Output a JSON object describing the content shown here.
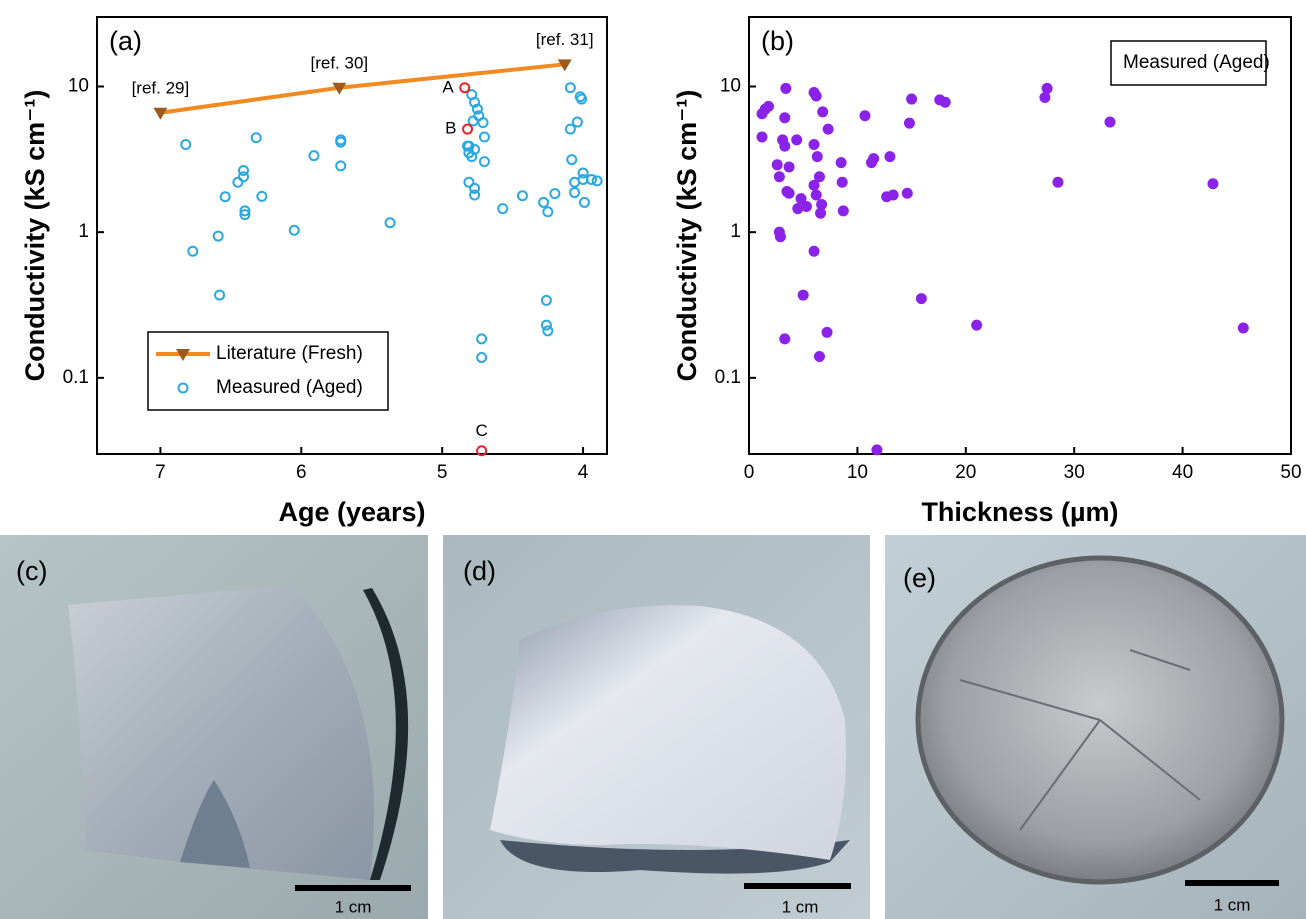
{
  "chart_data": [
    {
      "type": "scatter",
      "panel_label": "(a)",
      "xlabel": "Age (years)",
      "ylabel": "Conductivity (kS cm⁻¹)",
      "xlim": [
        7.45,
        3.83
      ],
      "xticks": [
        7,
        6,
        5,
        4
      ],
      "ylim": [
        0.03,
        30
      ],
      "ylog": true,
      "yticks": [
        0.1,
        1,
        10
      ],
      "grid": false,
      "legend": "lower left",
      "series": [
        {
          "name": "Literature (Fresh)",
          "style": "line",
          "color": "#f28a22",
          "marker_color": "#9a5b1c",
          "marker": "triangle-down",
          "x": [
            7.0,
            5.73,
            4.13
          ],
          "values": [
            6.6,
            9.8,
            14.2
          ]
        },
        {
          "name": "Measured (Aged)",
          "style": "points",
          "color": "#2aa8e0",
          "marker": "open-circle",
          "x": [
            6.82,
            6.77,
            6.59,
            6.58,
            6.54,
            6.45,
            6.41,
            6.41,
            6.4,
            6.4,
            6.32,
            6.28,
            6.05,
            5.91,
            5.72,
            5.72,
            5.72,
            5.37,
            4.81,
            4.81,
            4.79,
            4.77,
            4.75,
            4.74,
            4.78,
            4.71,
            4.7,
            4.82,
            4.77,
            4.81,
            4.79,
            4.7,
            4.77,
            4.77,
            4.72,
            4.72,
            4.57,
            4.43,
            4.28,
            4.25,
            4.26,
            4.26,
            4.25,
            4.2,
            4.09,
            4.02,
            4.01,
            4.09,
            4.04,
            4.08,
            4.06,
            4.06,
            4.0,
            4.0,
            3.94,
            3.99,
            3.9
          ],
          "values": [
            4.0,
            0.74,
            0.94,
            0.37,
            1.75,
            2.2,
            2.4,
            2.65,
            1.4,
            1.32,
            4.45,
            1.76,
            1.03,
            3.35,
            4.3,
            4.15,
            2.85,
            1.16,
            3.9,
            2.2,
            8.8,
            7.8,
            7.0,
            6.3,
            5.8,
            5.65,
            4.5,
            3.9,
            3.7,
            3.5,
            3.3,
            3.05,
            2.0,
            1.8,
            0.185,
            0.138,
            1.45,
            1.78,
            1.6,
            1.38,
            0.34,
            0.23,
            0.21,
            1.84,
            9.8,
            8.5,
            8.2,
            5.1,
            5.7,
            3.15,
            2.2,
            1.87,
            2.55,
            2.3,
            2.3,
            1.6,
            2.25
          ]
        }
      ],
      "annotations": [
        {
          "text": "[ref. 29]",
          "x": 7.0,
          "y": 6.6
        },
        {
          "text": "[ref. 30]",
          "x": 5.73,
          "y": 9.8
        },
        {
          "text": "[ref. 31]",
          "x": 4.13,
          "y": 14.2
        }
      ],
      "highlights": {
        "color": "#e8232a",
        "points": [
          {
            "label": "A",
            "x": 4.84,
            "y": 9.8
          },
          {
            "label": "B",
            "x": 4.82,
            "y": 5.1
          },
          {
            "label": "C",
            "x": 4.72,
            "y": 0.0316
          }
        ]
      }
    },
    {
      "type": "scatter",
      "panel_label": "(b)",
      "xlabel": "Thickness (µm)",
      "ylabel": "Conductivity (kS cm⁻¹)",
      "xlim": [
        0,
        50
      ],
      "xticks": [
        0,
        10,
        20,
        30,
        40,
        50
      ],
      "ylim": [
        0.03,
        30
      ],
      "ylog": true,
      "yticks": [
        0.1,
        1,
        10
      ],
      "grid": false,
      "legend": "upper right",
      "series": [
        {
          "name": "Measured (Aged)",
          "style": "points",
          "color": "#8b22e8",
          "marker": "filled-circle",
          "legend_marker": false,
          "x": [
            1.2,
            1.5,
            1.8,
            1.2,
            2.6,
            2.8,
            2.8,
            2.9,
            3.1,
            3.3,
            3.4,
            3.3,
            3.5,
            3.7,
            3.7,
            3.3,
            4.4,
            4.5,
            4.8,
            5.0,
            5.3,
            6.0,
            6.2,
            6.0,
            6.3,
            6.0,
            6.2,
            6.0,
            6.5,
            6.6,
            6.7,
            6.5,
            6.8,
            7.3,
            7.2,
            8.5,
            8.6,
            8.7,
            10.7,
            11.3,
            11.5,
            11.8,
            12.7,
            13.3,
            13.0,
            14.6,
            14.8,
            15.0,
            15.9,
            17.6,
            18.1,
            21.0,
            27.3,
            27.5,
            28.5,
            33.3,
            42.8,
            45.6
          ],
          "values": [
            6.5,
            7.0,
            7.3,
            4.5,
            2.9,
            2.4,
            1.0,
            0.93,
            4.3,
            6.1,
            9.7,
            3.9,
            1.9,
            2.8,
            1.85,
            0.185,
            4.3,
            1.45,
            1.7,
            0.37,
            1.5,
            9.1,
            8.6,
            4.0,
            3.3,
            2.1,
            1.8,
            0.74,
            2.4,
            1.35,
            1.55,
            0.14,
            6.7,
            5.1,
            0.205,
            3.0,
            2.2,
            1.4,
            6.3,
            3.0,
            3.2,
            0.032,
            1.75,
            1.8,
            3.3,
            1.85,
            5.6,
            8.2,
            0.35,
            8.1,
            7.8,
            0.23,
            8.4,
            9.7,
            2.2,
            5.7,
            2.15,
            0.22
          ]
        }
      ]
    }
  ],
  "panels": [
    {
      "label": "(c)",
      "scale_bar": "1 cm"
    },
    {
      "label": "(d)",
      "scale_bar": "1 cm"
    },
    {
      "label": "(e)",
      "scale_bar": "1 cm"
    }
  ]
}
